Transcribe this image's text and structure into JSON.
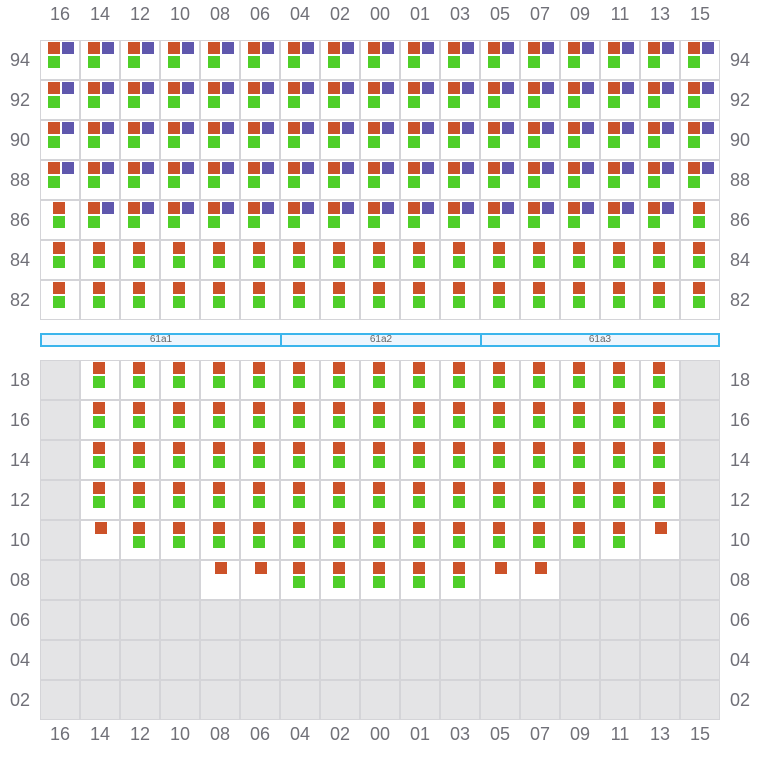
{
  "colors": {
    "slot_a": "#cc5229",
    "slot_b": "#5f57ad",
    "slot_c": "#4fcf2a",
    "disabled": "#e4e4e6",
    "banner_border": "#3bb5ec"
  },
  "columns": [
    "16",
    "14",
    "12",
    "10",
    "08",
    "06",
    "04",
    "02",
    "00",
    "01",
    "03",
    "05",
    "07",
    "09",
    "11",
    "13",
    "15"
  ],
  "top_grid": {
    "rows": [
      {
        "label": "94",
        "cells": [
          "abc",
          "abc",
          "abc",
          "abc",
          "abc",
          "abc",
          "abc",
          "abc",
          "abc",
          "abc",
          "abc",
          "abc",
          "abc",
          "abc",
          "abc",
          "abc",
          "abc"
        ]
      },
      {
        "label": "92",
        "cells": [
          "abc",
          "abc",
          "abc",
          "abc",
          "abc",
          "abc",
          "abc",
          "abc",
          "abc",
          "abc",
          "abc",
          "abc",
          "abc",
          "abc",
          "abc",
          "abc",
          "abc"
        ]
      },
      {
        "label": "90",
        "cells": [
          "abc",
          "abc",
          "abc",
          "abc",
          "abc",
          "abc",
          "abc",
          "abc",
          "abc",
          "abc",
          "abc",
          "abc",
          "abc",
          "abc",
          "abc",
          "abc",
          "abc"
        ]
      },
      {
        "label": "88",
        "cells": [
          "abc",
          "abc",
          "abc",
          "abc",
          "abc",
          "abc",
          "abc",
          "abc",
          "abc",
          "abc",
          "abc",
          "abc",
          "abc",
          "abc",
          "abc",
          "abc",
          "abc"
        ]
      },
      {
        "label": "86",
        "cells": [
          "ac",
          "abc",
          "abc",
          "abc",
          "abc",
          "abc",
          "abc",
          "abc",
          "abc",
          "abc",
          "abc",
          "abc",
          "abc",
          "abc",
          "abc",
          "abc",
          "ac"
        ]
      },
      {
        "label": "84",
        "cells": [
          "ac",
          "ac",
          "ac",
          "ac",
          "ac",
          "ac",
          "ac",
          "ac",
          "ac",
          "ac",
          "ac",
          "ac",
          "ac",
          "ac",
          "ac",
          "ac",
          "ac"
        ]
      },
      {
        "label": "82",
        "cells": [
          "ac",
          "ac",
          "ac",
          "ac",
          "ac",
          "ac",
          "ac",
          "ac",
          "ac",
          "ac",
          "ac",
          "ac",
          "ac",
          "ac",
          "ac",
          "ac",
          "ac"
        ]
      }
    ]
  },
  "banners": [
    {
      "label": "61a1",
      "span": 6
    },
    {
      "label": "61a2",
      "span": 5
    },
    {
      "label": "61a3",
      "span": 6
    }
  ],
  "bottom_grid": {
    "rows": [
      {
        "label": "18",
        "cells": [
          "x",
          "ac",
          "ac",
          "ac",
          "ac",
          "ac",
          "ac",
          "ac",
          "ac",
          "ac",
          "ac",
          "ac",
          "ac",
          "ac",
          "ac",
          "ac",
          "x"
        ]
      },
      {
        "label": "16",
        "cells": [
          "x",
          "ac",
          "ac",
          "ac",
          "ac",
          "ac",
          "ac",
          "ac",
          "ac",
          "ac",
          "ac",
          "ac",
          "ac",
          "ac",
          "ac",
          "ac",
          "x"
        ]
      },
      {
        "label": "14",
        "cells": [
          "x",
          "ac",
          "ac",
          "ac",
          "ac",
          "ac",
          "ac",
          "ac",
          "ac",
          "ac",
          "ac",
          "ac",
          "ac",
          "ac",
          "ac",
          "ac",
          "x"
        ]
      },
      {
        "label": "12",
        "cells": [
          "x",
          "ac",
          "ac",
          "ac",
          "ac",
          "ac",
          "ac",
          "ac",
          "ac",
          "ac",
          "ac",
          "ac",
          "ac",
          "ac",
          "ac",
          "ac",
          "x"
        ]
      },
      {
        "label": "10",
        "cells": [
          "x",
          "a",
          "ac",
          "ac",
          "ac",
          "ac",
          "ac",
          "ac",
          "ac",
          "ac",
          "ac",
          "ac",
          "ac",
          "ac",
          "ac",
          "a",
          "x"
        ]
      },
      {
        "label": "08",
        "cells": [
          "x",
          "x",
          "x",
          "x",
          "a",
          "a",
          "ac",
          "ac",
          "ac",
          "ac",
          "ac",
          "a",
          "a",
          "x",
          "x",
          "x",
          "x"
        ]
      },
      {
        "label": "06",
        "cells": [
          "x",
          "x",
          "x",
          "x",
          "x",
          "x",
          "x",
          "x",
          "x",
          "x",
          "x",
          "x",
          "x",
          "x",
          "x",
          "x",
          "x"
        ]
      },
      {
        "label": "04",
        "cells": [
          "x",
          "x",
          "x",
          "x",
          "x",
          "x",
          "x",
          "x",
          "x",
          "x",
          "x",
          "x",
          "x",
          "x",
          "x",
          "x",
          "x"
        ]
      },
      {
        "label": "02",
        "cells": [
          "x",
          "x",
          "x",
          "x",
          "x",
          "x",
          "x",
          "x",
          "x",
          "x",
          "x",
          "x",
          "x",
          "x",
          "x",
          "x",
          "x"
        ]
      }
    ]
  }
}
